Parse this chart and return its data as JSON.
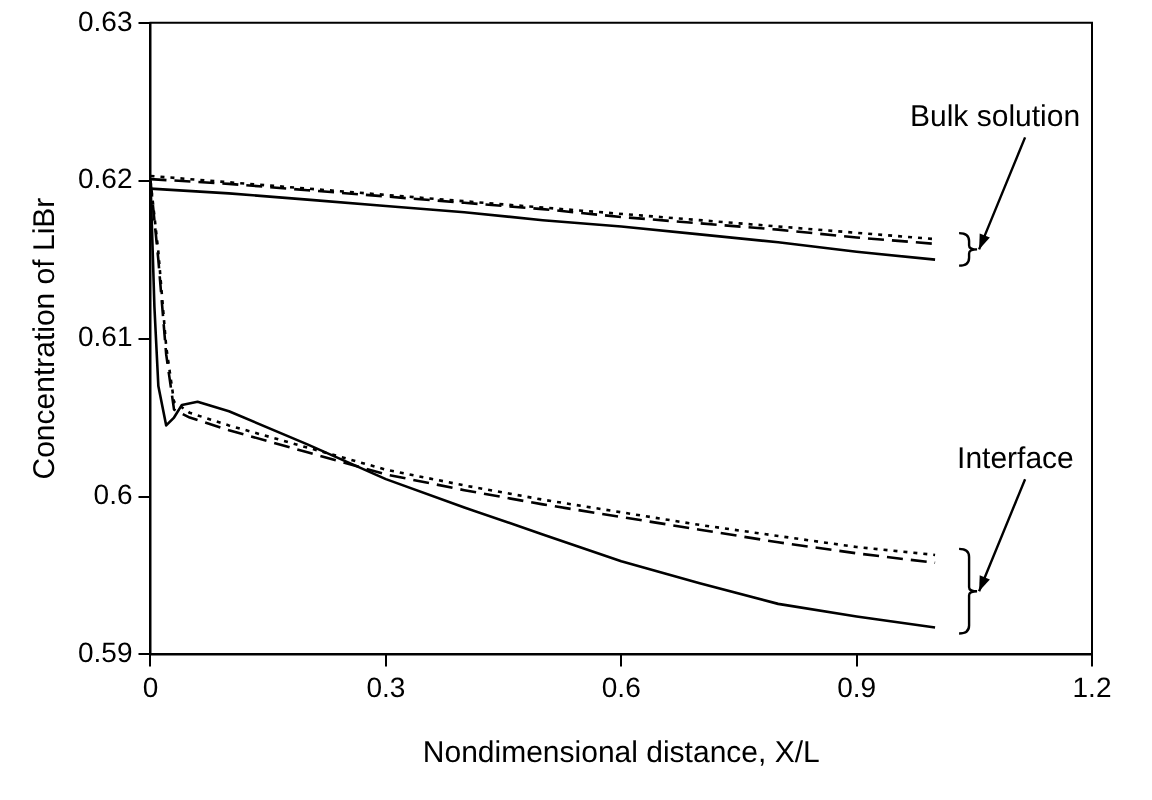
{
  "chart_data": {
    "type": "line",
    "xlabel": "Nondimensional distance, X/L",
    "ylabel": "Concentration of LiBr",
    "xlim": [
      0,
      1.2
    ],
    "xticks": [
      0,
      0.3,
      0.6,
      0.9,
      1.2
    ],
    "ylim": [
      0.59,
      0.63
    ],
    "yticks": [
      {
        "value": 0.59,
        "label": "0.59"
      },
      {
        "value": 0.6,
        "label": "0.6"
      },
      {
        "value": 0.61,
        "label": "0.61"
      },
      {
        "value": 0.62,
        "label": "0.62"
      },
      {
        "value": 0.63,
        "label": "0.63"
      }
    ],
    "grid": false,
    "legend": false,
    "marker": "none",
    "series": [
      {
        "color": "#000000",
        "line_style": "solid",
        "x": [
          0,
          0.1,
          0.2,
          0.3,
          0.4,
          0.5,
          0.6,
          0.7,
          0.8,
          0.9,
          1.0
        ],
        "values": [
          0.6195,
          0.6192,
          0.6188,
          0.6184,
          0.618,
          0.6175,
          0.6171,
          0.6166,
          0.6161,
          0.6155,
          0.615
        ]
      },
      {
        "color": "#000000",
        "line_style": "dashed",
        "x": [
          0,
          0.1,
          0.2,
          0.3,
          0.4,
          0.5,
          0.6,
          0.7,
          0.8,
          0.9,
          1.0
        ],
        "values": [
          0.6201,
          0.6198,
          0.6194,
          0.619,
          0.6186,
          0.6182,
          0.6177,
          0.6173,
          0.6169,
          0.6164,
          0.616
        ]
      },
      {
        "color": "#000000",
        "line_style": "dotted",
        "x": [
          0,
          0.05,
          0.15,
          0.25,
          0.35,
          0.45,
          0.55,
          0.65,
          0.75,
          0.85,
          0.95,
          1.0
        ],
        "values": [
          0.6203,
          0.6201,
          0.6197,
          0.6193,
          0.6189,
          0.6185,
          0.6181,
          0.6177,
          0.6173,
          0.6169,
          0.6165,
          0.6163
        ]
      },
      {
        "color": "#000000",
        "line_style": "solid",
        "x": [
          0,
          0.005,
          0.01,
          0.02,
          0.03,
          0.04,
          0.06,
          0.1,
          0.2,
          0.3,
          0.4,
          0.5,
          0.6,
          0.7,
          0.8,
          0.9,
          1.0
        ],
        "values": [
          0.62,
          0.612,
          0.607,
          0.6045,
          0.605,
          0.6058,
          0.606,
          0.6054,
          0.6033,
          0.6011,
          0.5993,
          0.5976,
          0.5959,
          0.5945,
          0.5932,
          0.5924,
          0.5917
        ]
      },
      {
        "color": "#000000",
        "line_style": "dashed",
        "x": [
          0,
          0.01,
          0.02,
          0.03,
          0.05,
          0.1,
          0.2,
          0.3,
          0.4,
          0.5,
          0.6,
          0.7,
          0.8,
          0.9,
          1.0
        ],
        "values": [
          0.62,
          0.615,
          0.609,
          0.6055,
          0.605,
          0.6042,
          0.6028,
          0.6014,
          0.6004,
          0.5995,
          0.5987,
          0.5979,
          0.5971,
          0.5964,
          0.5958
        ]
      },
      {
        "color": "#000000",
        "line_style": "dotted",
        "x": [
          0,
          0.01,
          0.02,
          0.03,
          0.05,
          0.1,
          0.2,
          0.3,
          0.4,
          0.5,
          0.6,
          0.7,
          0.8,
          0.9,
          1.0
        ],
        "values": [
          0.62,
          0.6155,
          0.6095,
          0.606,
          0.6053,
          0.6045,
          0.6031,
          0.6017,
          0.6007,
          0.5998,
          0.599,
          0.5982,
          0.5975,
          0.5968,
          0.5963
        ]
      }
    ],
    "annotations": [
      "Bulk solution",
      "Interface"
    ]
  }
}
